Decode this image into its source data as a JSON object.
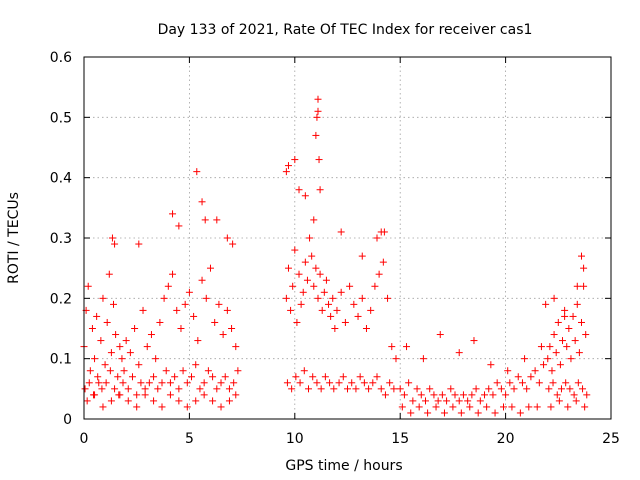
{
  "chart_data": {
    "type": "scatter",
    "title": "Day 133 of 2021, Rate Of TEC Index for receiver cas1",
    "xlabel": "GPS time / hours",
    "ylabel": "ROTI / TECUs",
    "xlim": [
      0,
      25
    ],
    "ylim": [
      0,
      0.6
    ],
    "xticks": [
      0,
      5,
      10,
      15,
      20,
      25
    ],
    "yticks": [
      0,
      0.1,
      0.2,
      0.3,
      0.4,
      0.5,
      0.6
    ],
    "xtick_labels": [
      "0",
      "5",
      "10",
      "15",
      "20",
      "25"
    ],
    "ytick_labels": [
      "0",
      "0.1",
      "0.2",
      "0.3",
      "0.4",
      "0.5",
      "0.6"
    ],
    "grid": true,
    "marker": "+",
    "color": "#ff0000",
    "series": [
      {
        "x": [
          0.0,
          0.1,
          0.2,
          0.3,
          0.4,
          0.5,
          0.6,
          0.7,
          0.8,
          0.9,
          1.0,
          1.1,
          1.2,
          1.3,
          1.4,
          1.5,
          1.6,
          1.7,
          1.8,
          1.9,
          2.0,
          2.2,
          2.4,
          2.6,
          2.8,
          3.0,
          3.2,
          3.4,
          3.6,
          3.8,
          4.0,
          4.2,
          4.4,
          4.6,
          4.8,
          5.0,
          5.2,
          5.4,
          5.6,
          5.8,
          6.0,
          6.2,
          6.4,
          6.6,
          6.8,
          7.0,
          7.2,
          0.05,
          0.25,
          0.45,
          0.65,
          0.85,
          1.05,
          1.25,
          1.45,
          1.65,
          1.85,
          2.1,
          2.3,
          2.5,
          2.7,
          2.9,
          3.1,
          3.3,
          3.5,
          3.7,
          3.9,
          4.1,
          4.3,
          4.5,
          4.7,
          4.9,
          5.1,
          5.3,
          5.5,
          5.7,
          5.9,
          6.1,
          6.3,
          6.5,
          6.7,
          6.9,
          7.1,
          7.3,
          0.15,
          0.5,
          0.9,
          1.3,
          1.7,
          2.1,
          2.5,
          2.9,
          3.3,
          3.7,
          4.1,
          4.5,
          4.9,
          5.3,
          5.7,
          6.1,
          6.5,
          6.9,
          7.2,
          1.35,
          1.45,
          2.6,
          4.2,
          4.5,
          5.35,
          5.6,
          5.75,
          6.3,
          6.8,
          7.05,
          9.6,
          9.7,
          9.8,
          9.9,
          10.0,
          10.1,
          10.2,
          10.3,
          10.4,
          10.5,
          10.6,
          10.7,
          10.8,
          10.9,
          11.0,
          11.1,
          11.2,
          11.3,
          11.4,
          11.5,
          11.6,
          11.7,
          11.8,
          11.9,
          12.0,
          12.2,
          12.4,
          12.6,
          12.8,
          13.0,
          13.2,
          13.4,
          13.6,
          13.8,
          14.0,
          14.2,
          14.4,
          14.6,
          14.8,
          9.65,
          9.85,
          10.05,
          10.25,
          10.45,
          10.65,
          10.85,
          11.05,
          11.25,
          11.45,
          11.65,
          11.85,
          12.1,
          12.3,
          12.5,
          12.7,
          12.9,
          13.1,
          13.3,
          13.5,
          13.7,
          13.9,
          14.1,
          14.3,
          14.5,
          14.7,
          9.6,
          9.7,
          10.0,
          10.2,
          10.5,
          10.9,
          11.0,
          11.05,
          11.1,
          11.1,
          11.15,
          11.2,
          12.2,
          13.2,
          13.9,
          14.1,
          14.25,
          15.0,
          15.2,
          15.4,
          15.6,
          15.8,
          16.0,
          16.2,
          16.4,
          16.6,
          16.8,
          17.0,
          17.2,
          17.4,
          17.6,
          17.8,
          18.0,
          18.2,
          18.4,
          18.6,
          18.8,
          19.0,
          19.2,
          19.4,
          19.6,
          19.8,
          20.0,
          20.2,
          20.4,
          20.6,
          20.8,
          21.0,
          21.2,
          21.4,
          21.6,
          21.8,
          15.1,
          15.5,
          15.9,
          16.3,
          16.7,
          17.1,
          17.5,
          17.9,
          18.3,
          18.7,
          19.1,
          19.5,
          19.9,
          20.3,
          20.7,
          21.1,
          21.5,
          15.3,
          16.1,
          16.9,
          17.8,
          18.5,
          19.3,
          20.1,
          20.9,
          21.7,
          22.0,
          22.1,
          22.2,
          22.3,
          22.4,
          22.5,
          22.6,
          22.7,
          22.8,
          22.9,
          23.0,
          23.1,
          23.2,
          23.3,
          23.4,
          23.5,
          23.6,
          23.7,
          23.8,
          22.05,
          22.25,
          22.45,
          22.65,
          22.85,
          23.05,
          23.25,
          23.45,
          23.65,
          23.85,
          22.15,
          22.55,
          22.95,
          23.35,
          23.75,
          21.9,
          22.3,
          22.8,
          23.4,
          23.6,
          23.7
        ],
        "y": [
          0.12,
          0.18,
          0.22,
          0.08,
          0.15,
          0.1,
          0.17,
          0.06,
          0.13,
          0.2,
          0.09,
          0.16,
          0.24,
          0.11,
          0.19,
          0.14,
          0.07,
          0.12,
          0.1,
          0.08,
          0.13,
          0.11,
          0.15,
          0.09,
          0.18,
          0.12,
          0.14,
          0.1,
          0.16,
          0.2,
          0.22,
          0.24,
          0.18,
          0.15,
          0.19,
          0.21,
          0.17,
          0.13,
          0.23,
          0.2,
          0.25,
          0.16,
          0.19,
          0.14,
          0.18,
          0.15,
          0.12,
          0.05,
          0.06,
          0.04,
          0.07,
          0.05,
          0.06,
          0.08,
          0.05,
          0.04,
          0.06,
          0.05,
          0.07,
          0.04,
          0.06,
          0.05,
          0.06,
          0.07,
          0.05,
          0.06,
          0.08,
          0.06,
          0.07,
          0.05,
          0.08,
          0.06,
          0.07,
          0.09,
          0.05,
          0.06,
          0.08,
          0.07,
          0.05,
          0.06,
          0.07,
          0.05,
          0.06,
          0.08,
          0.03,
          0.04,
          0.02,
          0.03,
          0.04,
          0.03,
          0.02,
          0.04,
          0.03,
          0.02,
          0.04,
          0.03,
          0.02,
          0.03,
          0.04,
          0.03,
          0.02,
          0.03,
          0.04,
          0.3,
          0.29,
          0.29,
          0.34,
          0.32,
          0.41,
          0.36,
          0.33,
          0.33,
          0.3,
          0.29,
          0.2,
          0.25,
          0.18,
          0.22,
          0.28,
          0.16,
          0.24,
          0.19,
          0.21,
          0.26,
          0.23,
          0.3,
          0.27,
          0.22,
          0.25,
          0.2,
          0.24,
          0.18,
          0.21,
          0.23,
          0.19,
          0.17,
          0.2,
          0.15,
          0.18,
          0.21,
          0.16,
          0.22,
          0.19,
          0.17,
          0.2,
          0.15,
          0.18,
          0.22,
          0.24,
          0.26,
          0.2,
          0.12,
          0.1,
          0.06,
          0.05,
          0.07,
          0.06,
          0.08,
          0.05,
          0.07,
          0.06,
          0.05,
          0.07,
          0.06,
          0.05,
          0.06,
          0.07,
          0.05,
          0.06,
          0.05,
          0.07,
          0.06,
          0.05,
          0.06,
          0.07,
          0.05,
          0.04,
          0.06,
          0.05,
          0.41,
          0.42,
          0.43,
          0.38,
          0.37,
          0.33,
          0.47,
          0.5,
          0.51,
          0.53,
          0.43,
          0.38,
          0.31,
          0.27,
          0.3,
          0.31,
          0.31,
          0.05,
          0.04,
          0.06,
          0.03,
          0.05,
          0.04,
          0.03,
          0.05,
          0.04,
          0.03,
          0.04,
          0.03,
          0.05,
          0.04,
          0.03,
          0.04,
          0.03,
          0.04,
          0.05,
          0.03,
          0.04,
          0.05,
          0.04,
          0.06,
          0.05,
          0.04,
          0.06,
          0.05,
          0.07,
          0.06,
          0.05,
          0.07,
          0.08,
          0.06,
          0.09,
          0.02,
          0.01,
          0.02,
          0.01,
          0.02,
          0.01,
          0.02,
          0.01,
          0.02,
          0.01,
          0.02,
          0.01,
          0.02,
          0.02,
          0.01,
          0.02,
          0.02,
          0.12,
          0.1,
          0.14,
          0.11,
          0.13,
          0.09,
          0.08,
          0.1,
          0.12,
          0.1,
          0.12,
          0.08,
          0.14,
          0.11,
          0.16,
          0.09,
          0.13,
          0.18,
          0.12,
          0.15,
          0.1,
          0.17,
          0.13,
          0.19,
          0.11,
          0.16,
          0.22,
          0.14,
          0.05,
          0.06,
          0.04,
          0.05,
          0.06,
          0.05,
          0.04,
          0.06,
          0.05,
          0.04,
          0.02,
          0.03,
          0.02,
          0.03,
          0.02,
          0.19,
          0.2,
          0.17,
          0.22,
          0.27,
          0.25
        ]
      }
    ]
  }
}
